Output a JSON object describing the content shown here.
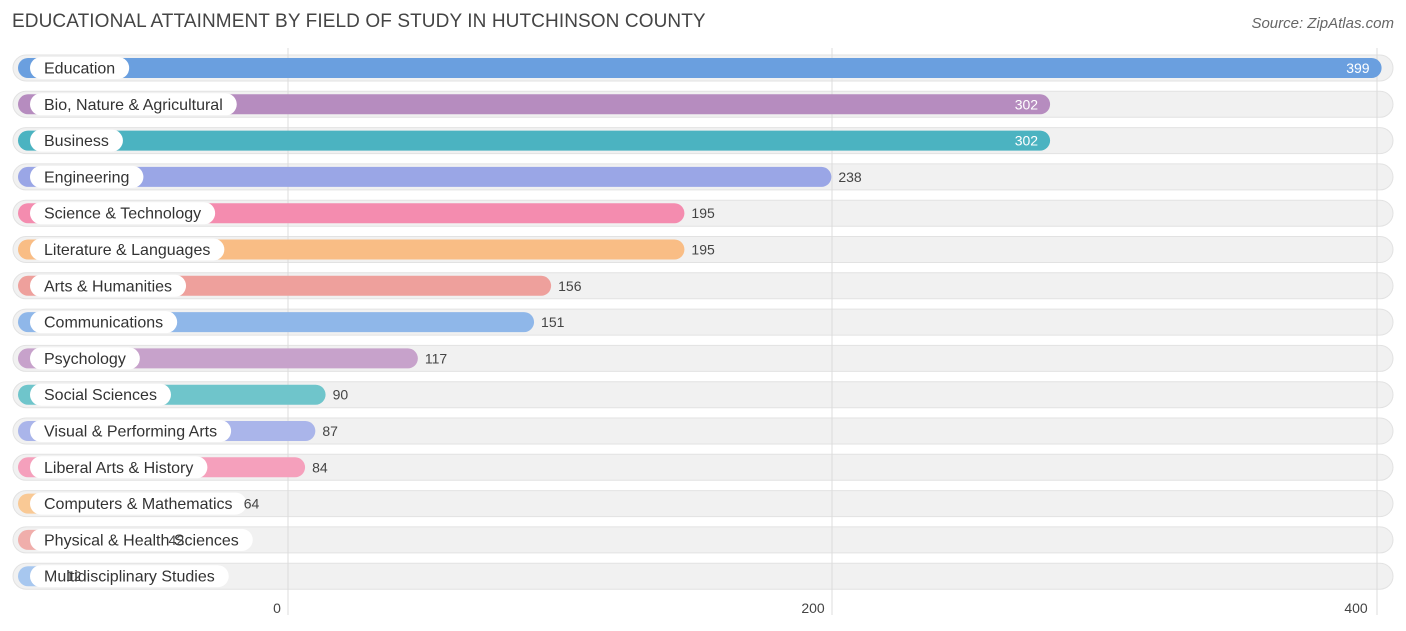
{
  "title": "EDUCATIONAL ATTAINMENT BY FIELD OF STUDY IN HUTCHINSON COUNTY",
  "source": "Source: ZipAtlas.com",
  "chart_data": {
    "type": "bar",
    "orientation": "horizontal",
    "title": "EDUCATIONAL ATTAINMENT BY FIELD OF STUDY IN HUTCHINSON COUNTY",
    "xlabel": "",
    "ylabel": "",
    "xlim": [
      0,
      400
    ],
    "xticks": [
      0,
      200,
      400
    ],
    "grid": true,
    "categories": [
      "Education",
      "Bio, Nature & Agricultural",
      "Business",
      "Engineering",
      "Science & Technology",
      "Literature & Languages",
      "Arts & Humanities",
      "Communications",
      "Psychology",
      "Social Sciences",
      "Visual & Performing Arts",
      "Liberal Arts & History",
      "Computers & Mathematics",
      "Physical & Health Sciences",
      "Multidisciplinary Studies"
    ],
    "values": [
      399,
      302,
      302,
      238,
      195,
      195,
      156,
      151,
      117,
      90,
      87,
      84,
      64,
      42,
      12
    ],
    "colors": [
      "#6a9fdf",
      "#b68cbf",
      "#4bb3c1",
      "#9aa6e6",
      "#f48caf",
      "#f9bd85",
      "#eea09c",
      "#8fb7e9",
      "#c7a2cb",
      "#6fc5cb",
      "#aab5ea",
      "#f5a0bc",
      "#f9c995",
      "#f0aeab",
      "#a7c7ef"
    ]
  }
}
